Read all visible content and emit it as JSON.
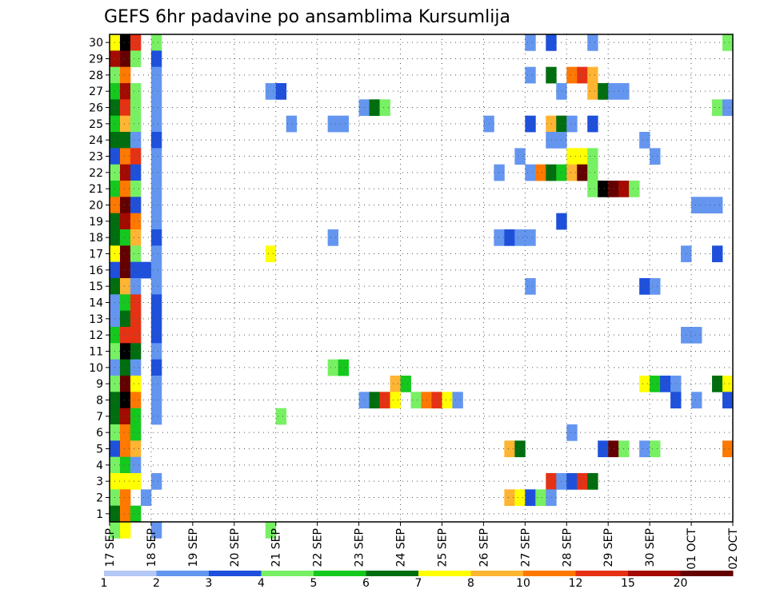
{
  "chart_data": {
    "type": "heatmap",
    "title": "GEFS 6hr padavine po ansamblima Kursumlija",
    "xlabel": "",
    "ylabel": "",
    "x_tick_labels": [
      "17 SEP",
      "18 SEP",
      "19 SEP",
      "20 SEP",
      "21 SEP",
      "22 SEP",
      "23 SEP",
      "24 SEP",
      "25 SEP",
      "26 SEP",
      "27 SEP",
      "28 SEP",
      "29 SEP",
      "30 SEP",
      "01 OCT",
      "02 OCT"
    ],
    "y_tick_labels": [
      "1",
      "2",
      "3",
      "4",
      "5",
      "6",
      "7",
      "8",
      "9",
      "10",
      "11",
      "12",
      "13",
      "14",
      "15",
      "16",
      "17",
      "18",
      "19",
      "20",
      "21",
      "22",
      "23",
      "24",
      "25",
      "26",
      "27",
      "28",
      "29",
      "30"
    ],
    "x_range": [
      0,
      60
    ],
    "y_range": [
      0.5,
      30.5
    ],
    "grid": true,
    "colorbar": {
      "boundaries": [
        1,
        2,
        3,
        4,
        5,
        6,
        7,
        8,
        10,
        12,
        15,
        20
      ],
      "labels": [
        "1",
        "2",
        "3",
        "4",
        "5",
        "6",
        "7",
        "8",
        "10",
        "12",
        "15",
        "20"
      ],
      "colors": [
        "#b4c8f5",
        "#6496f0",
        "#1e50dc",
        "#78f064",
        "#14c81e",
        "#006e0f",
        "#ffff00",
        "#ffb432",
        "#ff7800",
        "#e63214",
        "#a50a00",
        "#640000"
      ]
    },
    "cells": [
      [
        0,
        30,
        6
      ],
      [
        1,
        30,
        12
      ],
      [
        2,
        30,
        9
      ],
      [
        4,
        30,
        3
      ],
      [
        40,
        30,
        1
      ],
      [
        42,
        30,
        2
      ],
      [
        46,
        30,
        1
      ],
      [
        59,
        30,
        3
      ],
      [
        0,
        29,
        10
      ],
      [
        1,
        29,
        11
      ],
      [
        2,
        29,
        3
      ],
      [
        4,
        29,
        2
      ],
      [
        0,
        28,
        3
      ],
      [
        1,
        28,
        8
      ],
      [
        4,
        28,
        1
      ],
      [
        40,
        28,
        1
      ],
      [
        42,
        28,
        5
      ],
      [
        44,
        28,
        8
      ],
      [
        45,
        28,
        9
      ],
      [
        46,
        28,
        7
      ],
      [
        0,
        27,
        4
      ],
      [
        1,
        27,
        10
      ],
      [
        2,
        27,
        3
      ],
      [
        4,
        27,
        1
      ],
      [
        15,
        27,
        1
      ],
      [
        16,
        27,
        2
      ],
      [
        43,
        27,
        1
      ],
      [
        46,
        27,
        7
      ],
      [
        47,
        27,
        5
      ],
      [
        48,
        27,
        1
      ],
      [
        49,
        27,
        1
      ],
      [
        0,
        26,
        5
      ],
      [
        1,
        26,
        9
      ],
      [
        2,
        26,
        3
      ],
      [
        4,
        26,
        1
      ],
      [
        24,
        26,
        1
      ],
      [
        25,
        26,
        5
      ],
      [
        26,
        26,
        3
      ],
      [
        58,
        26,
        3
      ],
      [
        59,
        26,
        1
      ],
      [
        0,
        25,
        4
      ],
      [
        1,
        25,
        7
      ],
      [
        2,
        25,
        3
      ],
      [
        4,
        25,
        1
      ],
      [
        17,
        25,
        1
      ],
      [
        21,
        25,
        1
      ],
      [
        22,
        25,
        1
      ],
      [
        36,
        25,
        1
      ],
      [
        40,
        25,
        2
      ],
      [
        42,
        25,
        7
      ],
      [
        43,
        25,
        5
      ],
      [
        44,
        25,
        1
      ],
      [
        46,
        25,
        2
      ],
      [
        0,
        24,
        5
      ],
      [
        1,
        24,
        5
      ],
      [
        2,
        24,
        1
      ],
      [
        4,
        24,
        2
      ],
      [
        42,
        24,
        1
      ],
      [
        43,
        24,
        1
      ],
      [
        51,
        24,
        1
      ],
      [
        0,
        23,
        2
      ],
      [
        1,
        23,
        8
      ],
      [
        2,
        23,
        9
      ],
      [
        4,
        23,
        1
      ],
      [
        39,
        23,
        1
      ],
      [
        44,
        23,
        6
      ],
      [
        45,
        23,
        6
      ],
      [
        46,
        23,
        3
      ],
      [
        52,
        23,
        1
      ],
      [
        0,
        22,
        3
      ],
      [
        1,
        22,
        10
      ],
      [
        2,
        22,
        2
      ],
      [
        4,
        22,
        1
      ],
      [
        37,
        22,
        1
      ],
      [
        40,
        22,
        1
      ],
      [
        41,
        22,
        8
      ],
      [
        42,
        22,
        5
      ],
      [
        43,
        22,
        4
      ],
      [
        44,
        22,
        7
      ],
      [
        45,
        22,
        11
      ],
      [
        46,
        22,
        3
      ],
      [
        0,
        21,
        4
      ],
      [
        1,
        21,
        8
      ],
      [
        2,
        21,
        3
      ],
      [
        4,
        21,
        1
      ],
      [
        46,
        21,
        3
      ],
      [
        47,
        21,
        12
      ],
      [
        48,
        21,
        11
      ],
      [
        49,
        21,
        10
      ],
      [
        50,
        21,
        3
      ],
      [
        0,
        20,
        8
      ],
      [
        1,
        20,
        11
      ],
      [
        2,
        20,
        2
      ],
      [
        4,
        20,
        1
      ],
      [
        56,
        20,
        1
      ],
      [
        57,
        20,
        1
      ],
      [
        58,
        20,
        1
      ],
      [
        0,
        19,
        5
      ],
      [
        1,
        19,
        10
      ],
      [
        2,
        19,
        8
      ],
      [
        4,
        19,
        1
      ],
      [
        43,
        19,
        2
      ],
      [
        0,
        18,
        5
      ],
      [
        1,
        18,
        4
      ],
      [
        2,
        18,
        7
      ],
      [
        4,
        18,
        2
      ],
      [
        21,
        18,
        1
      ],
      [
        37,
        18,
        1
      ],
      [
        38,
        18,
        2
      ],
      [
        39,
        18,
        1
      ],
      [
        40,
        18,
        1
      ],
      [
        0,
        17,
        6
      ],
      [
        1,
        17,
        11
      ],
      [
        2,
        17,
        3
      ],
      [
        4,
        17,
        1
      ],
      [
        15,
        17,
        6
      ],
      [
        55,
        17,
        1
      ],
      [
        58,
        17,
        2
      ],
      [
        0,
        16,
        2
      ],
      [
        1,
        16,
        11
      ],
      [
        2,
        16,
        2
      ],
      [
        3,
        16,
        2
      ],
      [
        4,
        16,
        1
      ],
      [
        0,
        15,
        5
      ],
      [
        1,
        15,
        7
      ],
      [
        2,
        15,
        1
      ],
      [
        4,
        15,
        1
      ],
      [
        40,
        15,
        1
      ],
      [
        51,
        15,
        2
      ],
      [
        52,
        15,
        1
      ],
      [
        0,
        14,
        1
      ],
      [
        1,
        14,
        4
      ],
      [
        2,
        14,
        9
      ],
      [
        4,
        14,
        2
      ],
      [
        0,
        13,
        1
      ],
      [
        1,
        13,
        5
      ],
      [
        2,
        13,
        9
      ],
      [
        4,
        13,
        2
      ],
      [
        0,
        12,
        4
      ],
      [
        1,
        12,
        9
      ],
      [
        2,
        12,
        9
      ],
      [
        4,
        12,
        2
      ],
      [
        55,
        12,
        1
      ],
      [
        56,
        12,
        1
      ],
      [
        0,
        11,
        3
      ],
      [
        1,
        11,
        12
      ],
      [
        2,
        11,
        5
      ],
      [
        4,
        11,
        1
      ],
      [
        0,
        10,
        1
      ],
      [
        1,
        10,
        5
      ],
      [
        2,
        10,
        1
      ],
      [
        4,
        10,
        2
      ],
      [
        21,
        10,
        3
      ],
      [
        22,
        10,
        4
      ],
      [
        0,
        9,
        3
      ],
      [
        1,
        9,
        11
      ],
      [
        2,
        9,
        6
      ],
      [
        4,
        9,
        1
      ],
      [
        27,
        9,
        7
      ],
      [
        28,
        9,
        4
      ],
      [
        51,
        9,
        6
      ],
      [
        52,
        9,
        4
      ],
      [
        53,
        9,
        2
      ],
      [
        54,
        9,
        1
      ],
      [
        58,
        9,
        5
      ],
      [
        59,
        9,
        6
      ],
      [
        0,
        8,
        5
      ],
      [
        1,
        8,
        12
      ],
      [
        2,
        8,
        8
      ],
      [
        4,
        8,
        1
      ],
      [
        24,
        8,
        1
      ],
      [
        25,
        8,
        5
      ],
      [
        26,
        8,
        9
      ],
      [
        27,
        8,
        6
      ],
      [
        29,
        8,
        3
      ],
      [
        30,
        8,
        8
      ],
      [
        31,
        8,
        9
      ],
      [
        32,
        8,
        6
      ],
      [
        33,
        8,
        1
      ],
      [
        54,
        8,
        2
      ],
      [
        56,
        8,
        1
      ],
      [
        59,
        8,
        2
      ],
      [
        0,
        7,
        5
      ],
      [
        1,
        7,
        10
      ],
      [
        2,
        7,
        4
      ],
      [
        4,
        7,
        1
      ],
      [
        16,
        7,
        3
      ],
      [
        0,
        6,
        3
      ],
      [
        1,
        6,
        8
      ],
      [
        2,
        6,
        4
      ],
      [
        44,
        6,
        1
      ],
      [
        0,
        5,
        2
      ],
      [
        1,
        5,
        8
      ],
      [
        2,
        5,
        7
      ],
      [
        38,
        5,
        7
      ],
      [
        39,
        5,
        5
      ],
      [
        47,
        5,
        2
      ],
      [
        48,
        5,
        11
      ],
      [
        49,
        5,
        3
      ],
      [
        51,
        5,
        1
      ],
      [
        52,
        5,
        3
      ],
      [
        59,
        5,
        8
      ],
      [
        0,
        4,
        3
      ],
      [
        1,
        4,
        4
      ],
      [
        2,
        4,
        1
      ],
      [
        0,
        3,
        6
      ],
      [
        1,
        3,
        6
      ],
      [
        2,
        3,
        6
      ],
      [
        4,
        3,
        1
      ],
      [
        42,
        3,
        9
      ],
      [
        43,
        3,
        1
      ],
      [
        44,
        3,
        2
      ],
      [
        45,
        3,
        9
      ],
      [
        46,
        3,
        5
      ],
      [
        0,
        2,
        3
      ],
      [
        1,
        2,
        8
      ],
      [
        3,
        2,
        1
      ],
      [
        38,
        2,
        7
      ],
      [
        39,
        2,
        6
      ],
      [
        40,
        2,
        2
      ],
      [
        41,
        2,
        3
      ],
      [
        42,
        2,
        1
      ],
      [
        0,
        1,
        5
      ],
      [
        1,
        1,
        8
      ],
      [
        2,
        1,
        4
      ],
      [
        0,
        0,
        3
      ],
      [
        1,
        0,
        6
      ],
      [
        4,
        0,
        1
      ],
      [
        15,
        0,
        3
      ]
    ]
  }
}
